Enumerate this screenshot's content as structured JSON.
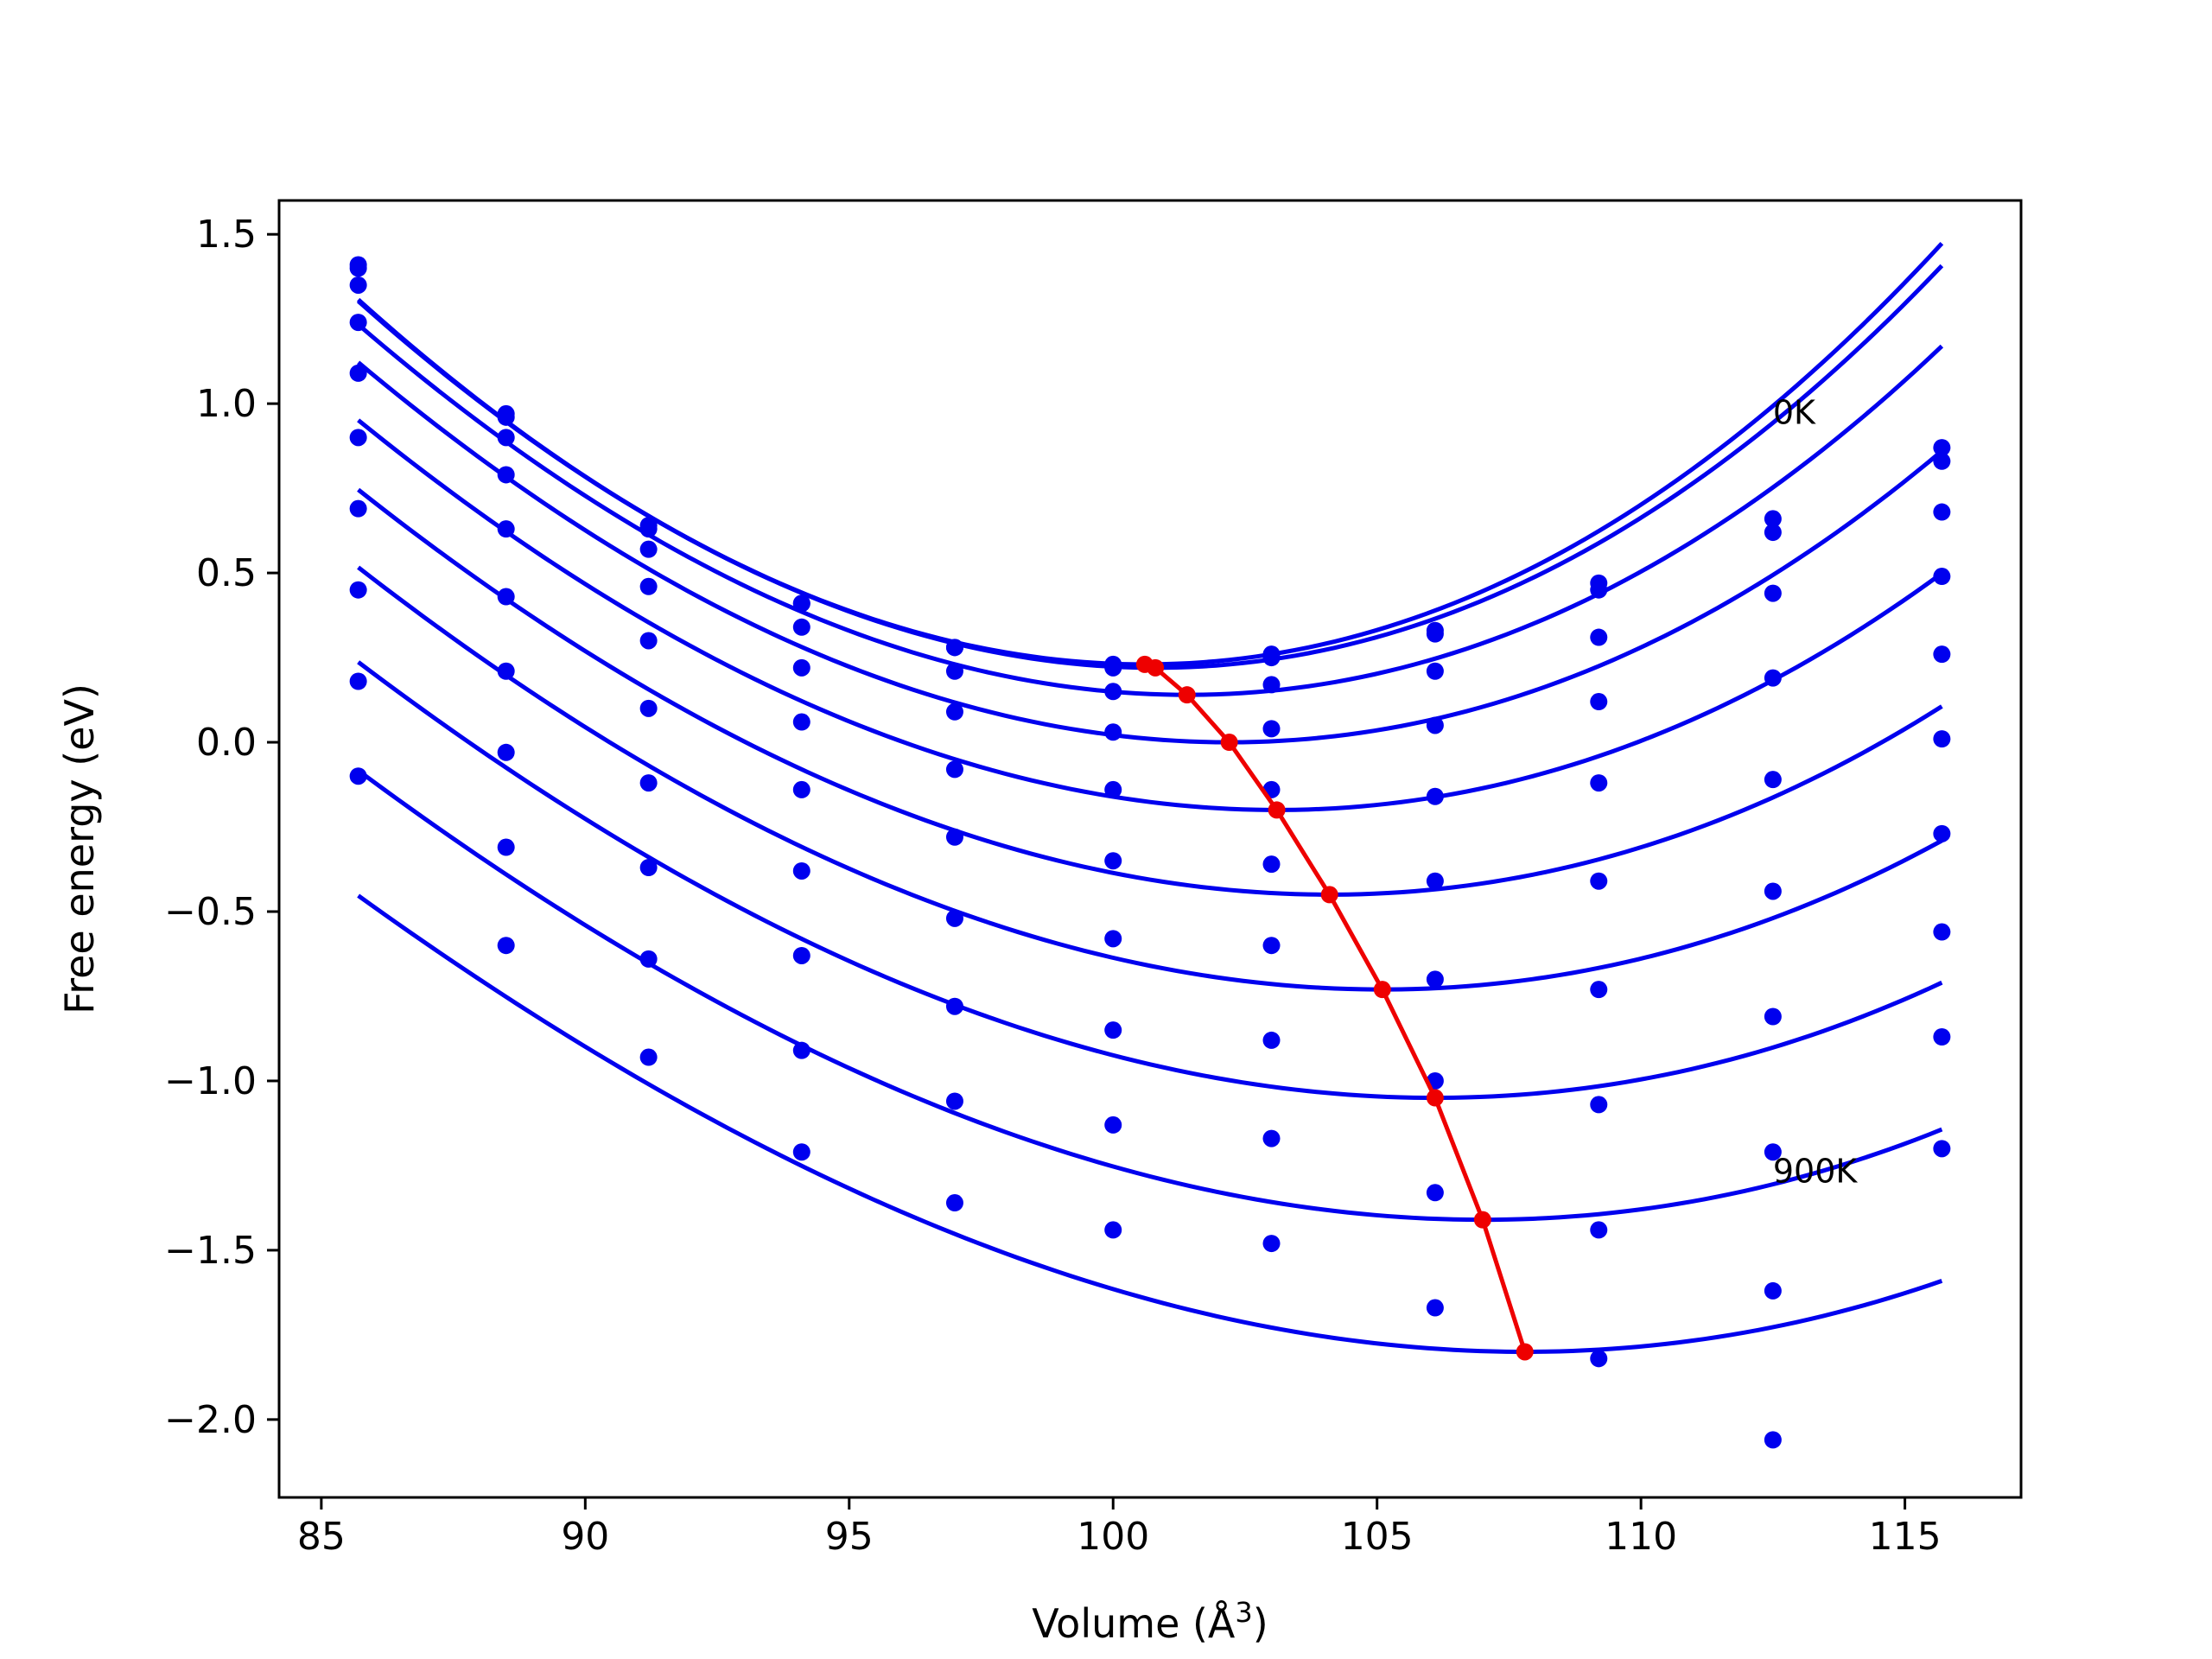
{
  "chart_data": {
    "type": "scatter",
    "title": "",
    "xlabel": "Volume (Å",
    "xlabel_sup": "3",
    "xlabel_end": ")",
    "ylabel": "Free energy (eV)",
    "xlim": [
      84.2,
      117.2
    ],
    "ylim": [
      -2.23,
      1.6
    ],
    "xticks": [
      85,
      90,
      95,
      100,
      105,
      110,
      115
    ],
    "xtick_labels": [
      "85",
      "90",
      "95",
      "100",
      "105",
      "110",
      "115"
    ],
    "yticks": [
      1.5,
      1.0,
      0.5,
      0.0,
      -0.5,
      -1.0,
      -1.5,
      -2.0
    ],
    "ytick_labels": [
      "1.5",
      "1.0",
      "0.5",
      "0.0",
      "−0.5",
      "−1.0",
      "−1.5",
      "−2.0"
    ],
    "grid": false,
    "colors": {
      "data": "#0000ee",
      "minima": "#ee0000",
      "axes": "#000000"
    },
    "annotations": [
      {
        "text": "0K",
        "x": 112.5,
        "y": 0.94
      },
      {
        "text": "900K",
        "x": 112.5,
        "y": -1.3
      }
    ],
    "volumes": [
      85.7,
      88.5,
      91.2,
      94.1,
      97.0,
      100.0,
      103.0,
      106.1,
      109.2,
      112.5,
      115.7
    ],
    "series": [
      {
        "points": [
          1.41,
          0.97,
          0.64,
          0.41,
          0.28,
          0.23,
          0.26,
          0.33,
          0.47,
          0.66,
          0.87
        ],
        "fit": {
          "v0": 100.6,
          "e0": 0.23,
          "k": 0.00515,
          "c": 2e-05
        }
      },
      {
        "points": [
          1.4,
          0.96,
          0.63,
          0.41,
          0.28,
          0.22,
          0.25,
          0.32,
          0.45,
          0.62,
          0.83
        ],
        "fit": {
          "v0": 100.8,
          "e0": 0.22,
          "k": 0.00505,
          "c": 2e-05
        }
      },
      {
        "points": [
          1.35,
          0.9,
          0.57,
          0.34,
          0.21,
          0.15,
          0.17,
          0.21,
          0.31,
          0.44,
          0.68
        ],
        "fit": {
          "v0": 101.4,
          "e0": 0.14,
          "k": 0.00475,
          "c": 2e-05
        }
      },
      {
        "points": [
          1.24,
          0.79,
          0.46,
          0.22,
          0.09,
          0.03,
          0.04,
          0.05,
          0.12,
          0.19,
          0.49
        ],
        "fit": {
          "v0": 102.2,
          "e0": 0.0,
          "k": 0.00445,
          "c": 2e-05
        }
      },
      {
        "points": [
          1.09,
          0.63,
          0.3,
          0.06,
          -0.08,
          -0.14,
          -0.14,
          -0.16,
          -0.12,
          -0.11,
          0.26
        ],
        "fit": {
          "v0": 103.1,
          "e0": -0.2,
          "k": 0.00415,
          "c": 2e-05
        }
      },
      {
        "points": [
          0.9,
          0.43,
          0.1,
          -0.14,
          -0.28,
          -0.35,
          -0.36,
          -0.41,
          -0.41,
          -0.44,
          0.01
        ],
        "fit": {
          "v0": 104.1,
          "e0": -0.45,
          "k": 0.0039,
          "c": 2e-05
        }
      },
      {
        "points": [
          0.69,
          0.21,
          -0.12,
          -0.38,
          -0.52,
          -0.58,
          -0.6,
          -0.7,
          -0.73,
          -0.81,
          -0.27
        ],
        "fit": {
          "v0": 105.1,
          "e0": -0.73,
          "k": 0.0037,
          "c": 2e-05
        }
      },
      {
        "points": [
          0.45,
          -0.03,
          -0.37,
          -0.63,
          -0.78,
          -0.85,
          -0.88,
          -1.0,
          -1.07,
          -1.21,
          -0.56
        ],
        "fit": {
          "v0": 106.1,
          "e0": -1.05,
          "k": 0.0035,
          "c": 2e-05
        }
      },
      {
        "points": [
          0.18,
          -0.31,
          -0.64,
          -0.91,
          -1.06,
          -1.13,
          -1.17,
          -1.33,
          -1.44,
          -1.62,
          -0.87
        ],
        "fit": {
          "v0": 107.0,
          "e0": -1.41,
          "k": 0.00335,
          "c": 2e-05
        }
      },
      {
        "points": [
          -0.1,
          -0.6,
          -0.93,
          -1.21,
          -1.36,
          -1.44,
          -1.48,
          -1.67,
          -1.82,
          -2.06,
          -1.2
        ],
        "fit": {
          "v0": 107.8,
          "e0": -1.8,
          "k": 0.0032,
          "c": 2e-05
        }
      }
    ],
    "minima_line": {
      "x": [
        100.6,
        100.8,
        101.4,
        102.2,
        103.1,
        104.1,
        105.1,
        106.1,
        107.0,
        107.8
      ],
      "y": [
        0.23,
        0.22,
        0.14,
        0.0,
        -0.2,
        -0.45,
        -0.73,
        -1.05,
        -1.41,
        -1.8
      ]
    }
  }
}
